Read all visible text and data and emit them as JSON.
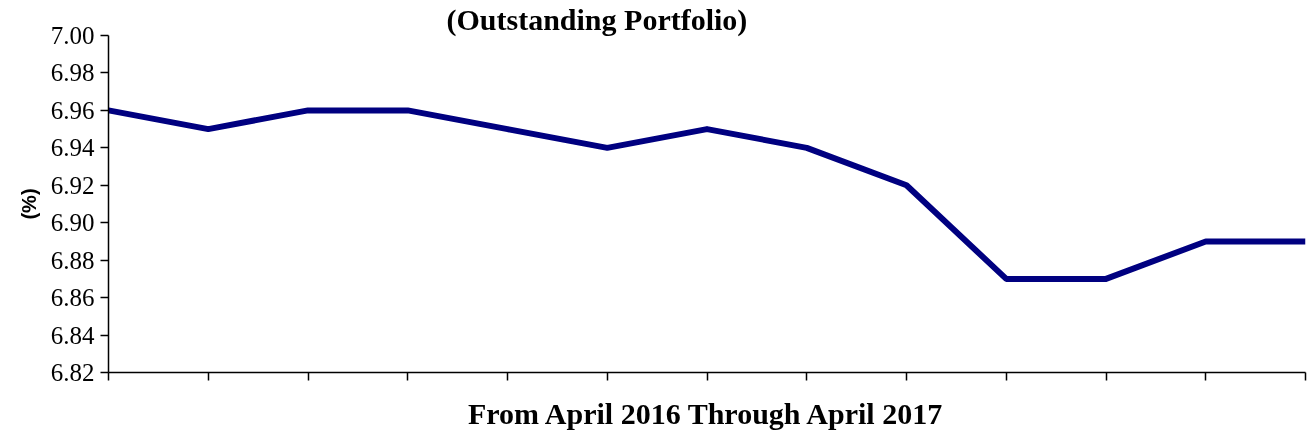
{
  "chart_data": {
    "type": "line",
    "title": "(Outstanding Portfolio)",
    "xlabel": "From April 2016 Through April 2017",
    "ylabel": "(%)",
    "categories": [
      null,
      null,
      null,
      null,
      null,
      null,
      null,
      null,
      null,
      null,
      null,
      null,
      null
    ],
    "series": [
      {
        "color": "#000080",
        "values": [
          6.96,
          6.95,
          6.96,
          6.96,
          6.95,
          6.94,
          6.95,
          6.94,
          6.92,
          6.87,
          6.87,
          6.89,
          6.89
        ]
      }
    ],
    "ylim": [
      6.82,
      7.0
    ],
    "yticks": [
      6.82,
      6.84,
      6.86,
      6.88,
      {
        "value": 6.9,
        "label": "6.90"
      },
      6.92,
      6.94,
      6.96,
      6.98,
      {
        "value": 7.0,
        "label": "7.00"
      }
    ],
    "tick_labels": "y"
  }
}
